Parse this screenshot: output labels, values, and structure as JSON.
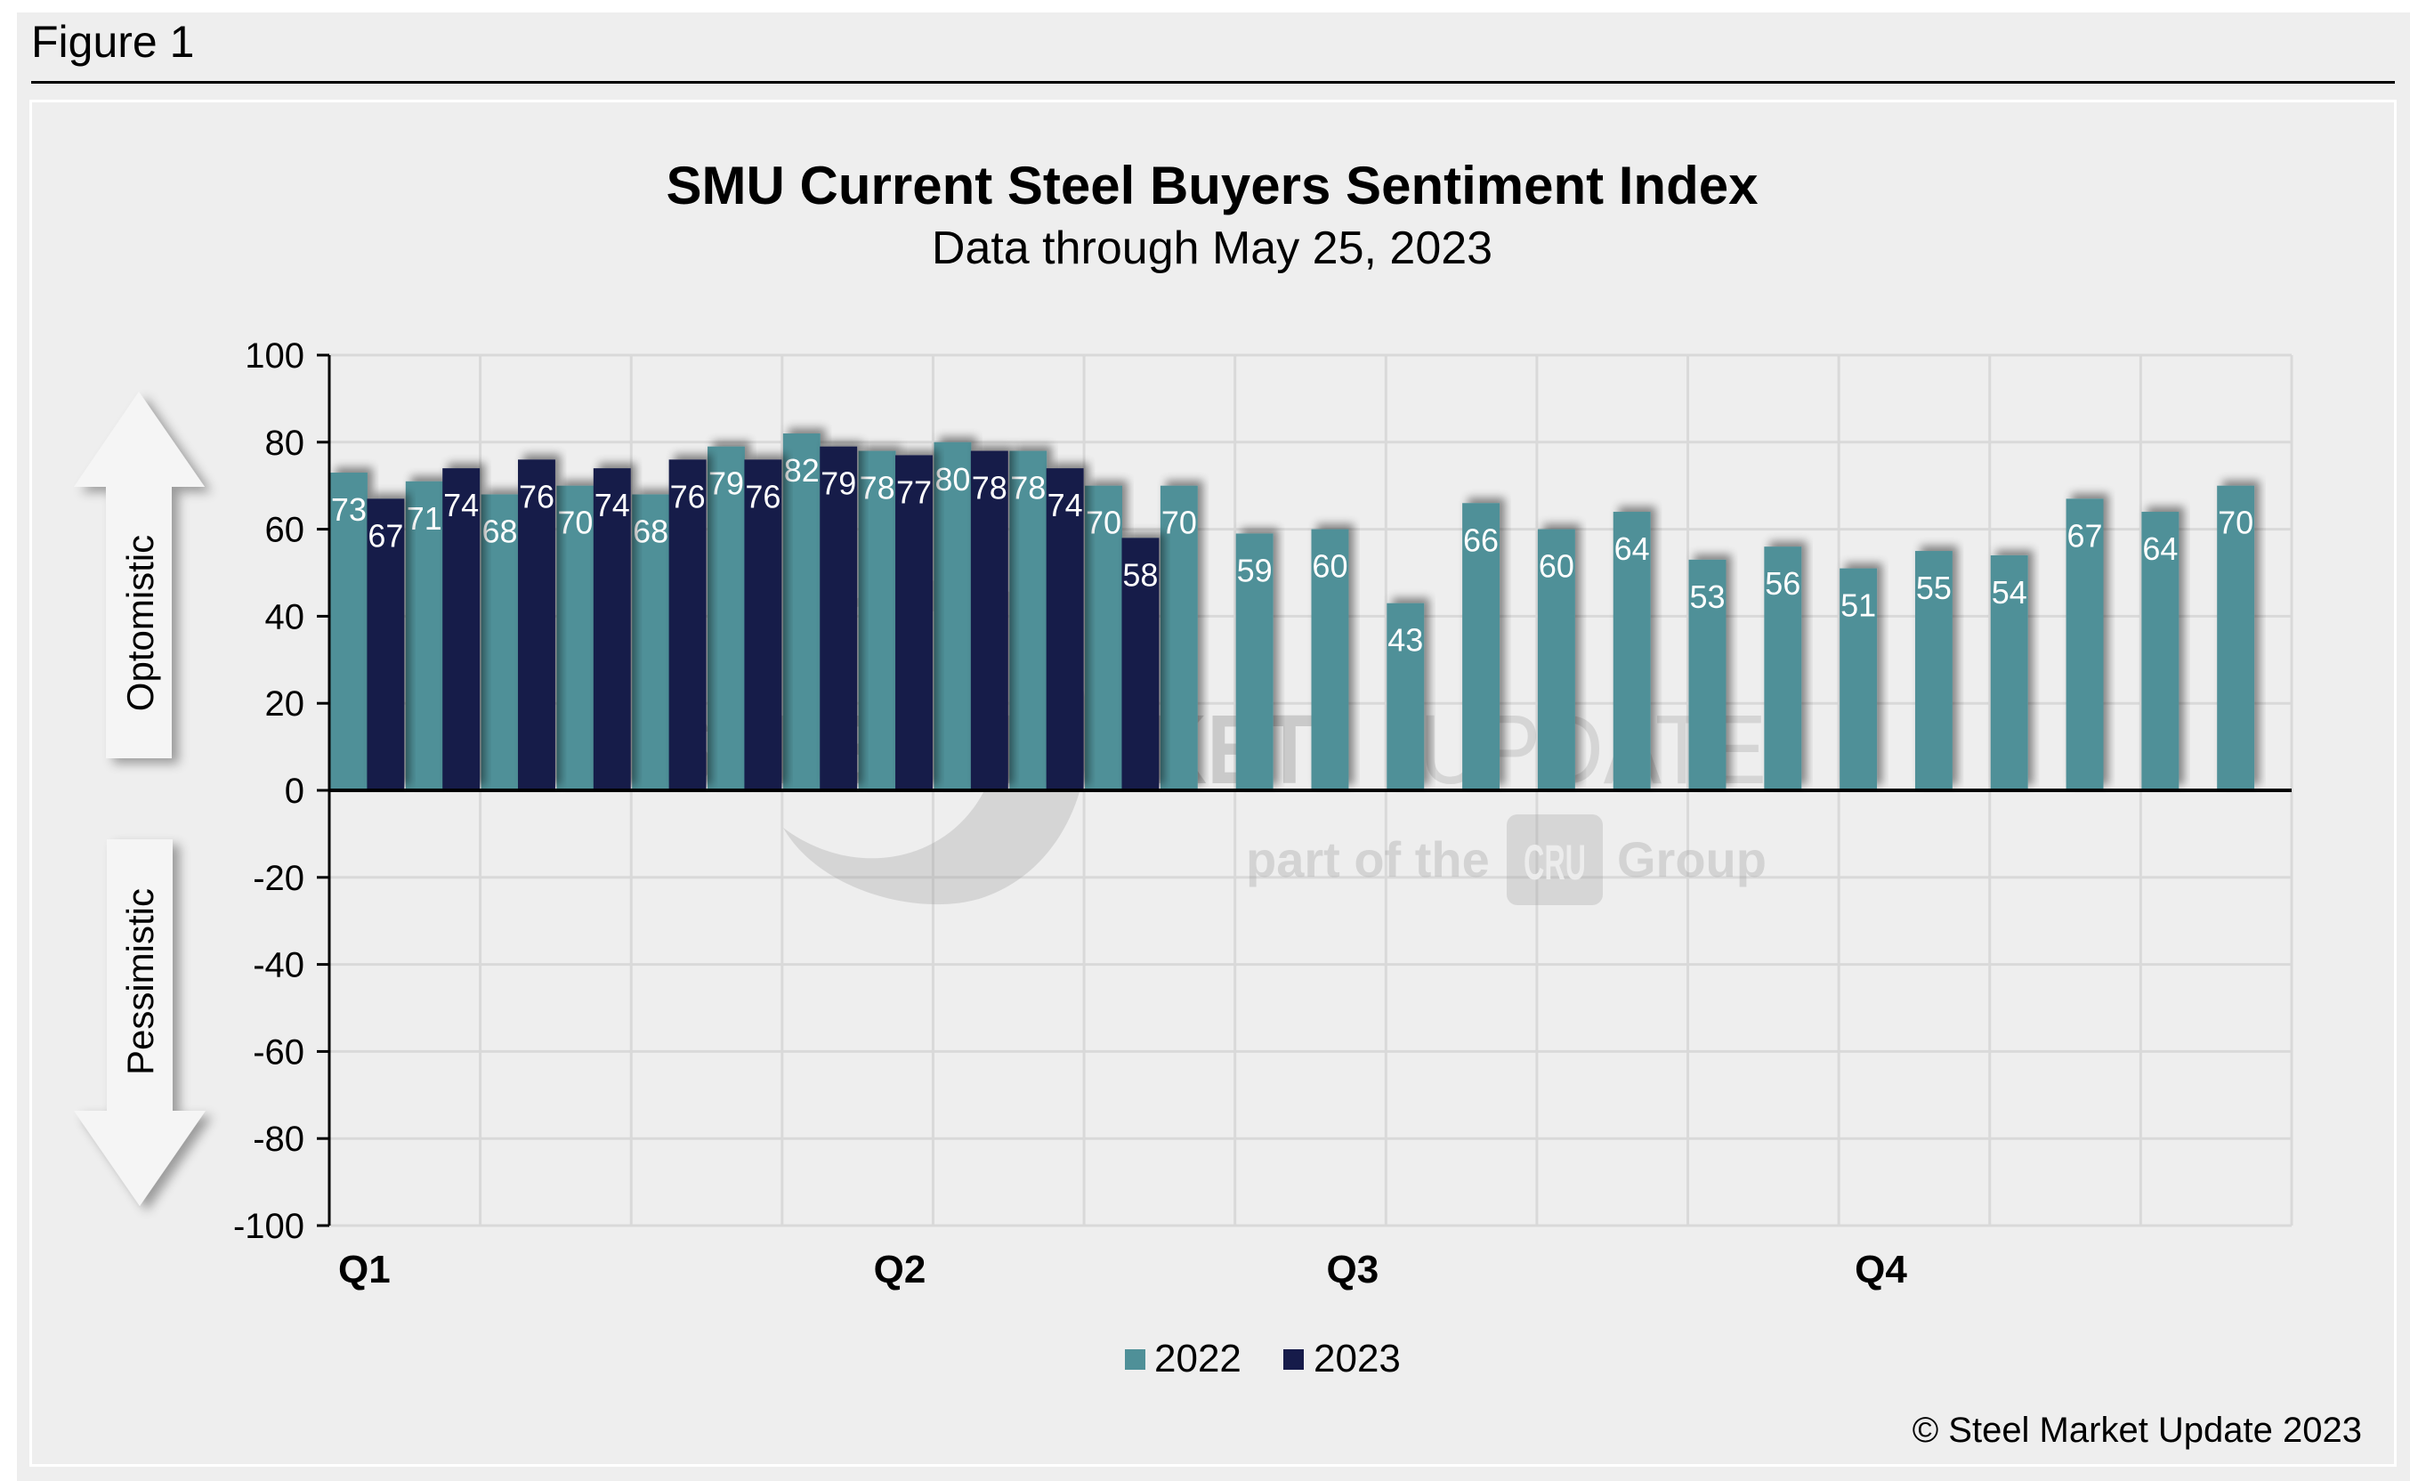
{
  "figure_label": "Figure 1",
  "copyright": "© Steel Market Update 2023",
  "watermark": {
    "main_bold": "STEEL MARKET",
    "main_light": "UPDATE",
    "sub_prefix": "part of the",
    "sub_badge": "CRU",
    "sub_suffix": "Group"
  },
  "side_arrows": {
    "up_label": "Optomistic",
    "down_label": "Pessimistic"
  },
  "colors": {
    "series_2022": "#4f9098",
    "series_2023": "#161b4a",
    "gridline": "#d9d9d9",
    "background": "#eeeeee"
  },
  "chart_data": {
    "type": "bar",
    "title": "SMU Current Steel Buyers Sentiment Index",
    "subtitle": "Data through May 25, 2023",
    "xlabel": "",
    "ylabel": "",
    "ylim": [
      -100,
      100
    ],
    "yticks": [
      100,
      80,
      60,
      40,
      20,
      0,
      -20,
      -40,
      -60,
      -80,
      -100
    ],
    "grid": true,
    "legend_position": "bottom-center",
    "slot_count": 26,
    "quarter_labels": [
      {
        "label": "Q1",
        "slot": 0
      },
      {
        "label": "Q2",
        "slot": 7
      },
      {
        "label": "Q3",
        "slot": 13
      },
      {
        "label": "Q4",
        "slot": 20
      }
    ],
    "series": [
      {
        "name": "2022",
        "color": "#4f9098",
        "values": [
          73,
          71,
          68,
          70,
          68,
          79,
          82,
          78,
          80,
          78,
          70,
          70,
          59,
          60,
          43,
          66,
          60,
          64,
          53,
          56,
          51,
          55,
          54,
          67,
          64,
          70
        ]
      },
      {
        "name": "2023",
        "color": "#161b4a",
        "values": [
          67,
          74,
          76,
          74,
          76,
          76,
          79,
          77,
          78,
          74,
          58
        ]
      }
    ]
  }
}
